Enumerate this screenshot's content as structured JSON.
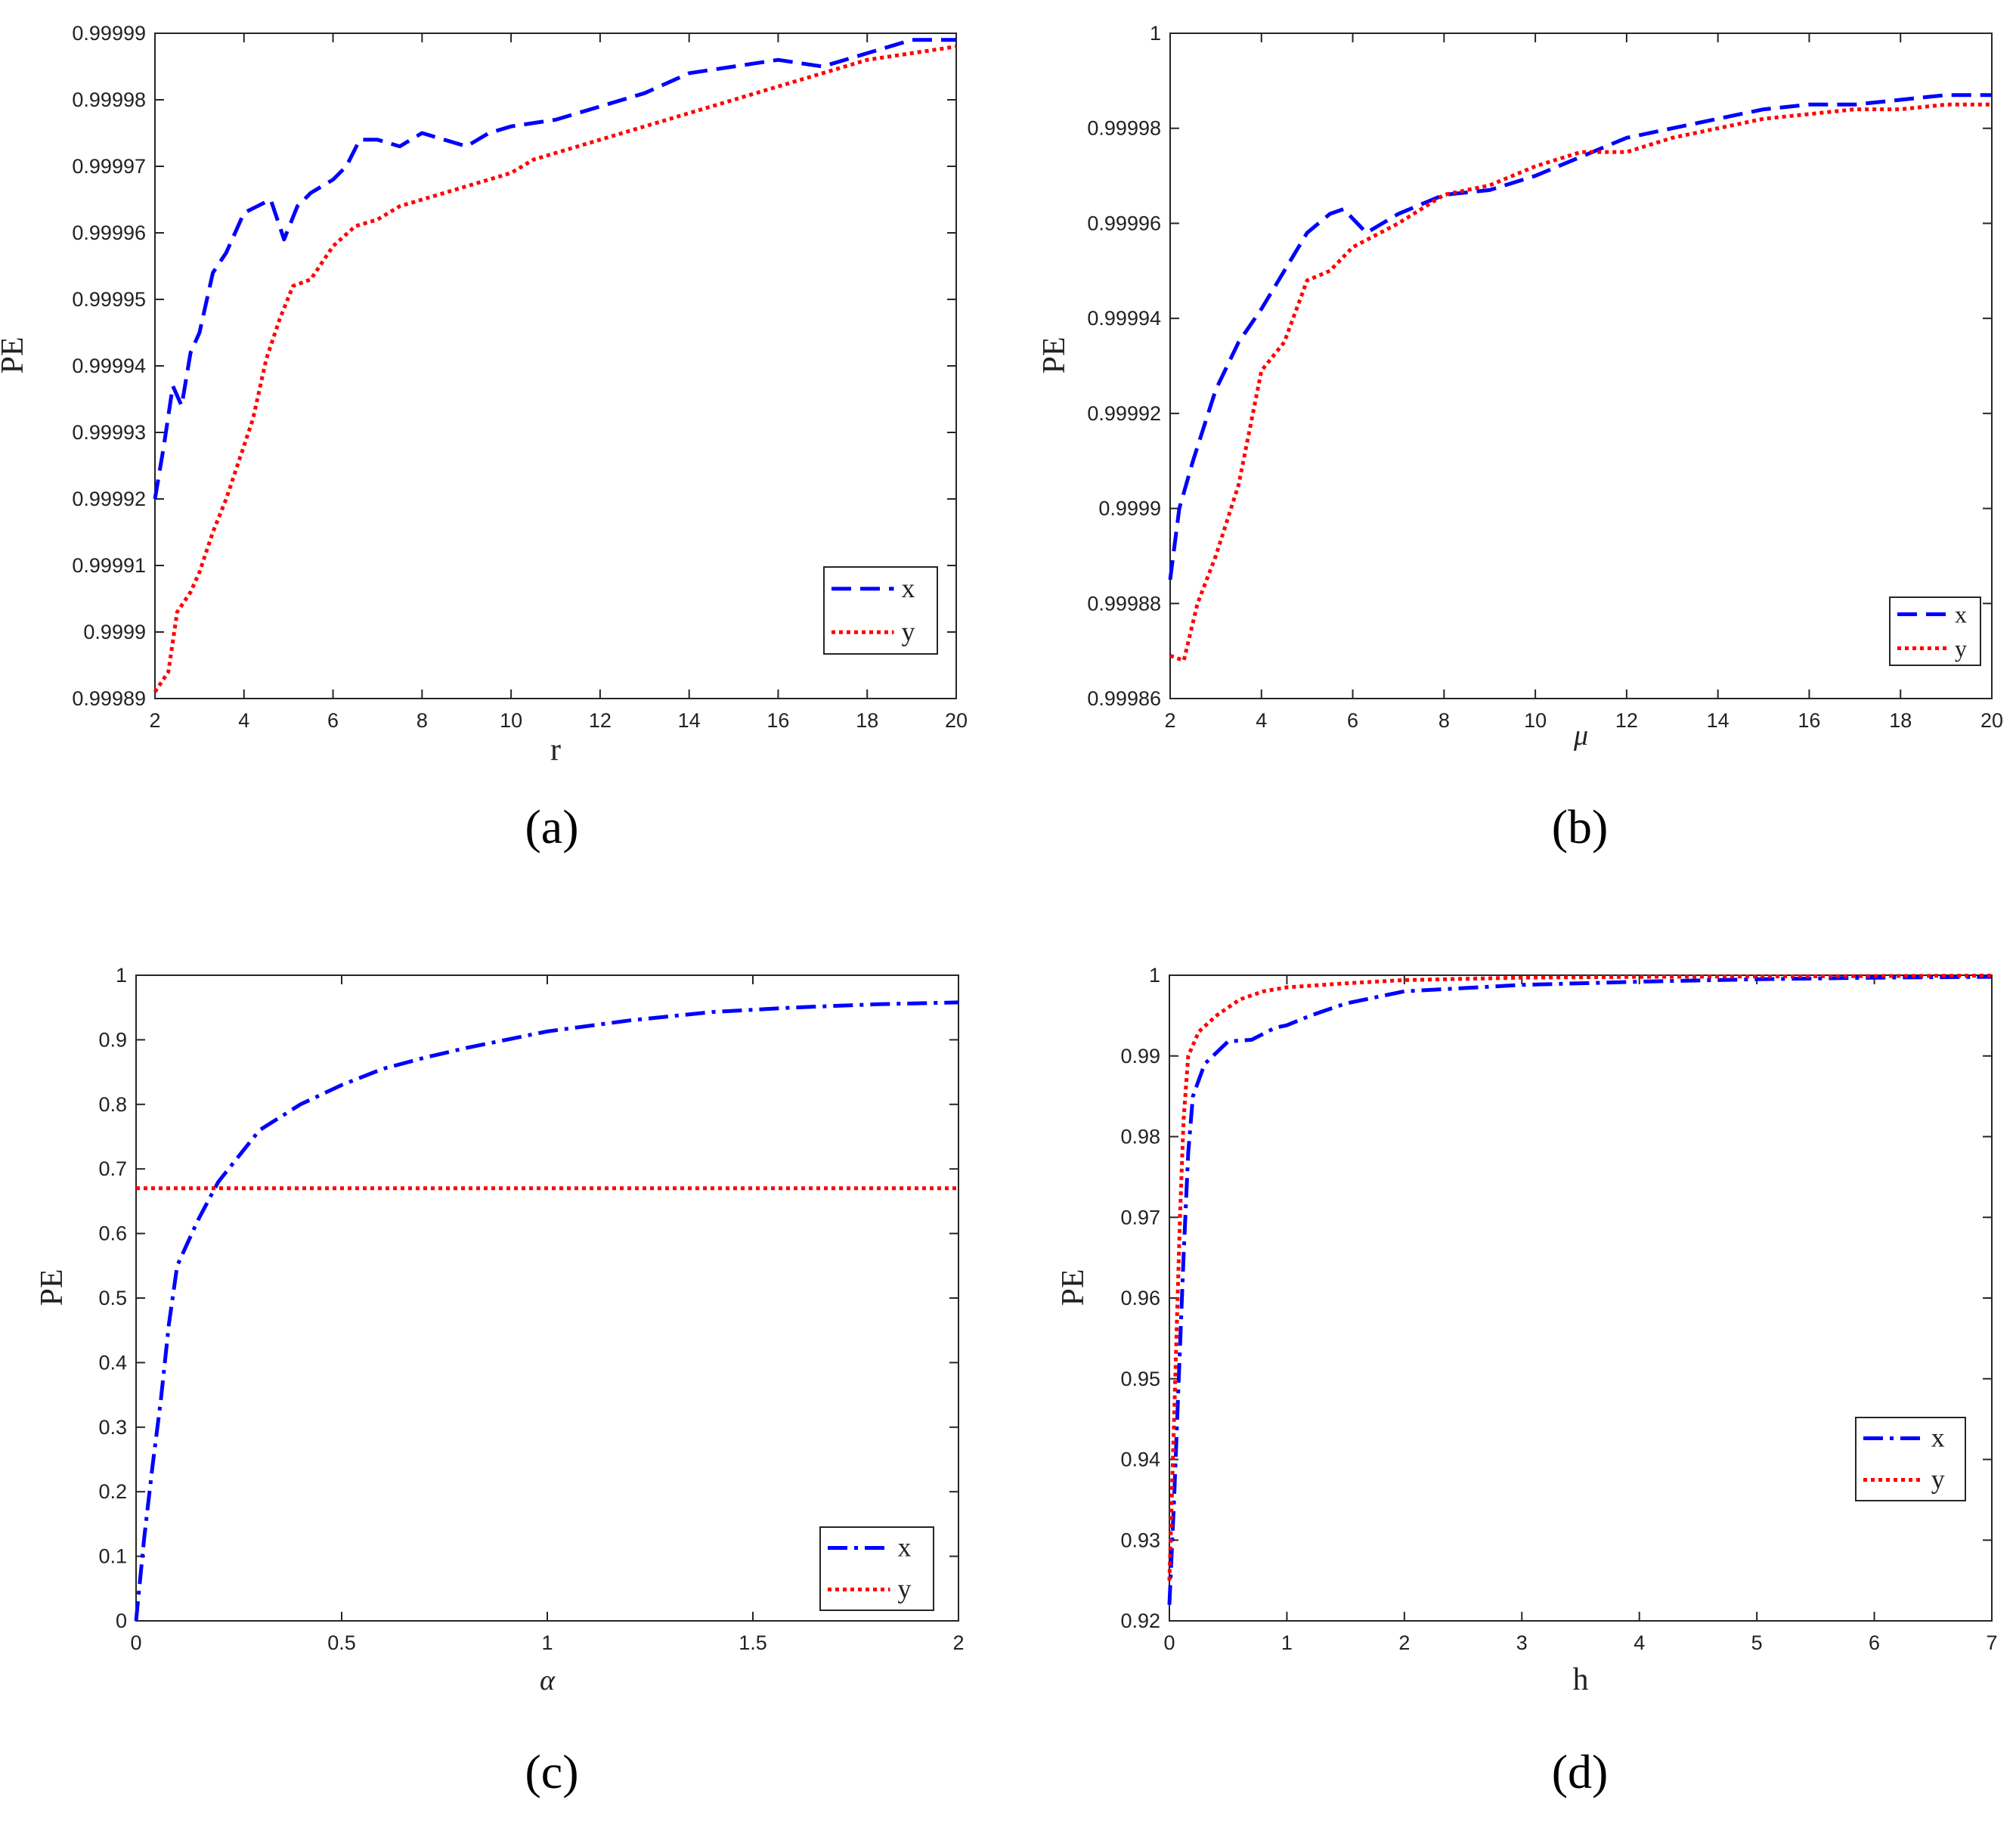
{
  "chart_data": [
    {
      "id": "a",
      "type": "line",
      "caption": "(a)",
      "xlabel": "r",
      "ylabel": "PE",
      "xlim": [
        2,
        20
      ],
      "ylim": [
        0.99989,
        0.99999
      ],
      "xticks": [
        "2",
        "4",
        "6",
        "8",
        "10",
        "12",
        "14",
        "16",
        "18",
        "20"
      ],
      "yticks": [
        "0.99989",
        "0.9999",
        "0.99991",
        "0.99992",
        "0.99993",
        "0.99994",
        "0.99995",
        "0.99996",
        "0.99997",
        "0.99998",
        "0.99999"
      ],
      "legend_position": "bottom-right",
      "series": [
        {
          "name": "x",
          "color": "#0000ff",
          "style": "dashed",
          "points": [
            [
              2,
              0.99992
            ],
            [
              2.2,
              0.999928
            ],
            [
              2.4,
              0.999937
            ],
            [
              2.6,
              0.999934
            ],
            [
              2.8,
              0.999942
            ],
            [
              3,
              0.999945
            ],
            [
              3.3,
              0.999954
            ],
            [
              3.6,
              0.999957
            ],
            [
              3.8,
              0.99996
            ],
            [
              4,
              0.999963
            ],
            [
              4.3,
              0.999964
            ],
            [
              4.6,
              0.999965
            ],
            [
              4.9,
              0.999959
            ],
            [
              5.2,
              0.999964
            ],
            [
              5.5,
              0.999966
            ],
            [
              6,
              0.999968
            ],
            [
              6.3,
              0.99997
            ],
            [
              6.6,
              0.999974
            ],
            [
              7,
              0.999974
            ],
            [
              7.5,
              0.999973
            ],
            [
              8,
              0.999975
            ],
            [
              8.5,
              0.999974
            ],
            [
              9,
              0.999973
            ],
            [
              9.5,
              0.999975
            ],
            [
              10,
              0.999976
            ],
            [
              11,
              0.999977
            ],
            [
              12,
              0.999979
            ],
            [
              13,
              0.999981
            ],
            [
              14,
              0.999984
            ],
            [
              15,
              0.999985
            ],
            [
              16,
              0.999986
            ],
            [
              17,
              0.999985
            ],
            [
              18,
              0.999987
            ],
            [
              19,
              0.999989
            ],
            [
              20,
              0.999989
            ]
          ]
        },
        {
          "name": "y",
          "color": "#ff0000",
          "style": "dotted",
          "points": [
            [
              2,
              0.999891
            ],
            [
              2.3,
              0.999894
            ],
            [
              2.5,
              0.999903
            ],
            [
              2.8,
              0.999906
            ],
            [
              3,
              0.999909
            ],
            [
              3.3,
              0.999915
            ],
            [
              3.6,
              0.99992
            ],
            [
              3.9,
              0.999926
            ],
            [
              4.2,
              0.999932
            ],
            [
              4.5,
              0.999941
            ],
            [
              4.8,
              0.999947
            ],
            [
              5.1,
              0.999952
            ],
            [
              5.5,
              0.999953
            ],
            [
              6,
              0.999958
            ],
            [
              6.5,
              0.999961
            ],
            [
              7,
              0.999962
            ],
            [
              7.5,
              0.999964
            ],
            [
              8,
              0.999965
            ],
            [
              8.5,
              0.999966
            ],
            [
              9,
              0.999967
            ],
            [
              9.5,
              0.999968
            ],
            [
              10,
              0.999969
            ],
            [
              10.5,
              0.999971
            ],
            [
              11,
              0.999972
            ],
            [
              11.5,
              0.999973
            ],
            [
              12,
              0.999974
            ],
            [
              13,
              0.999976
            ],
            [
              14,
              0.999978
            ],
            [
              15,
              0.99998
            ],
            [
              16,
              0.999982
            ],
            [
              17,
              0.999984
            ],
            [
              18,
              0.999986
            ],
            [
              19,
              0.999987
            ],
            [
              20,
              0.999988
            ]
          ]
        }
      ]
    },
    {
      "id": "b",
      "type": "line",
      "caption": "(b)",
      "xlabel": "μ",
      "ylabel": "PE",
      "xlim": [
        2,
        20
      ],
      "ylim": [
        0.99986,
        1
      ],
      "xticks": [
        "2",
        "4",
        "6",
        "8",
        "10",
        "12",
        "14",
        "16",
        "18",
        "20"
      ],
      "yticks": [
        "0.99986",
        "0.99988",
        "0.9999",
        "0.99992",
        "0.99994",
        "0.99996",
        "0.99998",
        "1"
      ],
      "legend_position": "bottom-right",
      "series": [
        {
          "name": "x",
          "color": "#0000ff",
          "style": "dashed",
          "points": [
            [
              2,
              0.999885
            ],
            [
              2.2,
              0.9999
            ],
            [
              2.5,
              0.99991
            ],
            [
              3,
              0.999925
            ],
            [
              3.5,
              0.999935
            ],
            [
              4,
              0.999942
            ],
            [
              4.5,
              0.99995
            ],
            [
              5,
              0.999958
            ],
            [
              5.5,
              0.999962
            ],
            [
              5.8,
              0.999963
            ],
            [
              6.3,
              0.999958
            ],
            [
              7,
              0.999962
            ],
            [
              8,
              0.999966
            ],
            [
              9,
              0.999967
            ],
            [
              10,
              0.99997
            ],
            [
              11,
              0.999974
            ],
            [
              12,
              0.999978
            ],
            [
              13,
              0.99998
            ],
            [
              14,
              0.999982
            ],
            [
              15,
              0.999984
            ],
            [
              16,
              0.999985
            ],
            [
              17,
              0.999985
            ],
            [
              18,
              0.999986
            ],
            [
              19,
              0.999987
            ],
            [
              20,
              0.999987
            ]
          ]
        },
        {
          "name": "y",
          "color": "#ff0000",
          "style": "dotted",
          "points": [
            [
              2,
              0.999869
            ],
            [
              2.3,
              0.999868
            ],
            [
              2.6,
              0.99988
            ],
            [
              3,
              0.99989
            ],
            [
              3.5,
              0.999905
            ],
            [
              4,
              0.999929
            ],
            [
              4.5,
              0.999935
            ],
            [
              5,
              0.999948
            ],
            [
              5.5,
              0.99995
            ],
            [
              6,
              0.999955
            ],
            [
              7,
              0.99996
            ],
            [
              8,
              0.999966
            ],
            [
              9,
              0.999968
            ],
            [
              10,
              0.999972
            ],
            [
              11,
              0.999975
            ],
            [
              12,
              0.999975
            ],
            [
              13,
              0.999978
            ],
            [
              14,
              0.99998
            ],
            [
              15,
              0.999982
            ],
            [
              16,
              0.999983
            ],
            [
              17,
              0.999984
            ],
            [
              18,
              0.999984
            ],
            [
              19,
              0.999985
            ],
            [
              20,
              0.999985
            ]
          ]
        }
      ]
    },
    {
      "id": "c",
      "type": "line",
      "caption": "(c)",
      "xlabel": "α",
      "ylabel": "PE",
      "xlim": [
        0,
        2
      ],
      "ylim": [
        0,
        1
      ],
      "xticks": [
        "0",
        "0.5",
        "1",
        "1.5",
        "2"
      ],
      "yticks": [
        "0",
        "0.1",
        "0.2",
        "0.3",
        "0.4",
        "0.5",
        "0.6",
        "0.7",
        "0.8",
        "0.9",
        "1"
      ],
      "legend_position": "bottom-right",
      "series": [
        {
          "name": "x",
          "color": "#0000ff",
          "style": "dashdot",
          "points": [
            [
              0,
              0
            ],
            [
              0.02,
              0.13
            ],
            [
              0.04,
              0.24
            ],
            [
              0.06,
              0.34
            ],
            [
              0.08,
              0.46
            ],
            [
              0.1,
              0.55
            ],
            [
              0.15,
              0.62
            ],
            [
              0.2,
              0.68
            ],
            [
              0.3,
              0.76
            ],
            [
              0.4,
              0.8
            ],
            [
              0.5,
              0.83
            ],
            [
              0.6,
              0.855
            ],
            [
              0.7,
              0.872
            ],
            [
              0.8,
              0.887
            ],
            [
              0.9,
              0.9
            ],
            [
              1,
              0.913
            ],
            [
              1.2,
              0.93
            ],
            [
              1.4,
              0.943
            ],
            [
              1.6,
              0.95
            ],
            [
              1.8,
              0.955
            ],
            [
              2,
              0.958
            ]
          ]
        },
        {
          "name": "y",
          "color": "#ff0000",
          "style": "dotted",
          "points": [
            [
              0,
              0.67
            ],
            [
              2,
              0.67
            ]
          ]
        }
      ]
    },
    {
      "id": "d",
      "type": "line",
      "caption": "(d)",
      "xlabel": "h",
      "ylabel": "PE",
      "xlim": [
        0,
        7
      ],
      "ylim": [
        0.92,
        1
      ],
      "xticks": [
        "0",
        "1",
        "2",
        "3",
        "4",
        "5",
        "6",
        "7"
      ],
      "yticks": [
        "0.92",
        "0.93",
        "0.94",
        "0.95",
        "0.96",
        "0.97",
        "0.98",
        "0.99",
        "1"
      ],
      "legend_position": "bottom-right",
      "series": [
        {
          "name": "x",
          "color": "#0000ff",
          "style": "dashdot",
          "points": [
            [
              0,
              0.922
            ],
            [
              0.04,
              0.935
            ],
            [
              0.08,
              0.95
            ],
            [
              0.12,
              0.965
            ],
            [
              0.16,
              0.978
            ],
            [
              0.2,
              0.985
            ],
            [
              0.3,
              0.989
            ],
            [
              0.5,
              0.9918
            ],
            [
              0.7,
              0.992
            ],
            [
              0.9,
              0.9935
            ],
            [
              1,
              0.9938
            ],
            [
              1.2,
              0.995
            ],
            [
              1.5,
              0.9965
            ],
            [
              2,
              0.998
            ],
            [
              3,
              0.9988
            ],
            [
              4,
              0.9992
            ],
            [
              5,
              0.9995
            ],
            [
              6,
              0.9997
            ],
            [
              7,
              0.9998
            ]
          ]
        },
        {
          "name": "y",
          "color": "#ff0000",
          "style": "dotted",
          "points": [
            [
              0,
              0.925
            ],
            [
              0.03,
              0.94
            ],
            [
              0.06,
              0.955
            ],
            [
              0.09,
              0.97
            ],
            [
              0.12,
              0.982
            ],
            [
              0.16,
              0.99
            ],
            [
              0.25,
              0.993
            ],
            [
              0.4,
              0.995
            ],
            [
              0.6,
              0.997
            ],
            [
              0.8,
              0.998
            ],
            [
              1,
              0.9985
            ],
            [
              1.5,
              0.999
            ],
            [
              2,
              0.9994
            ],
            [
              3,
              0.9997
            ],
            [
              4,
              0.9998
            ],
            [
              5,
              0.99985
            ],
            [
              6,
              0.9999
            ],
            [
              7,
              0.99995
            ]
          ]
        }
      ]
    }
  ]
}
